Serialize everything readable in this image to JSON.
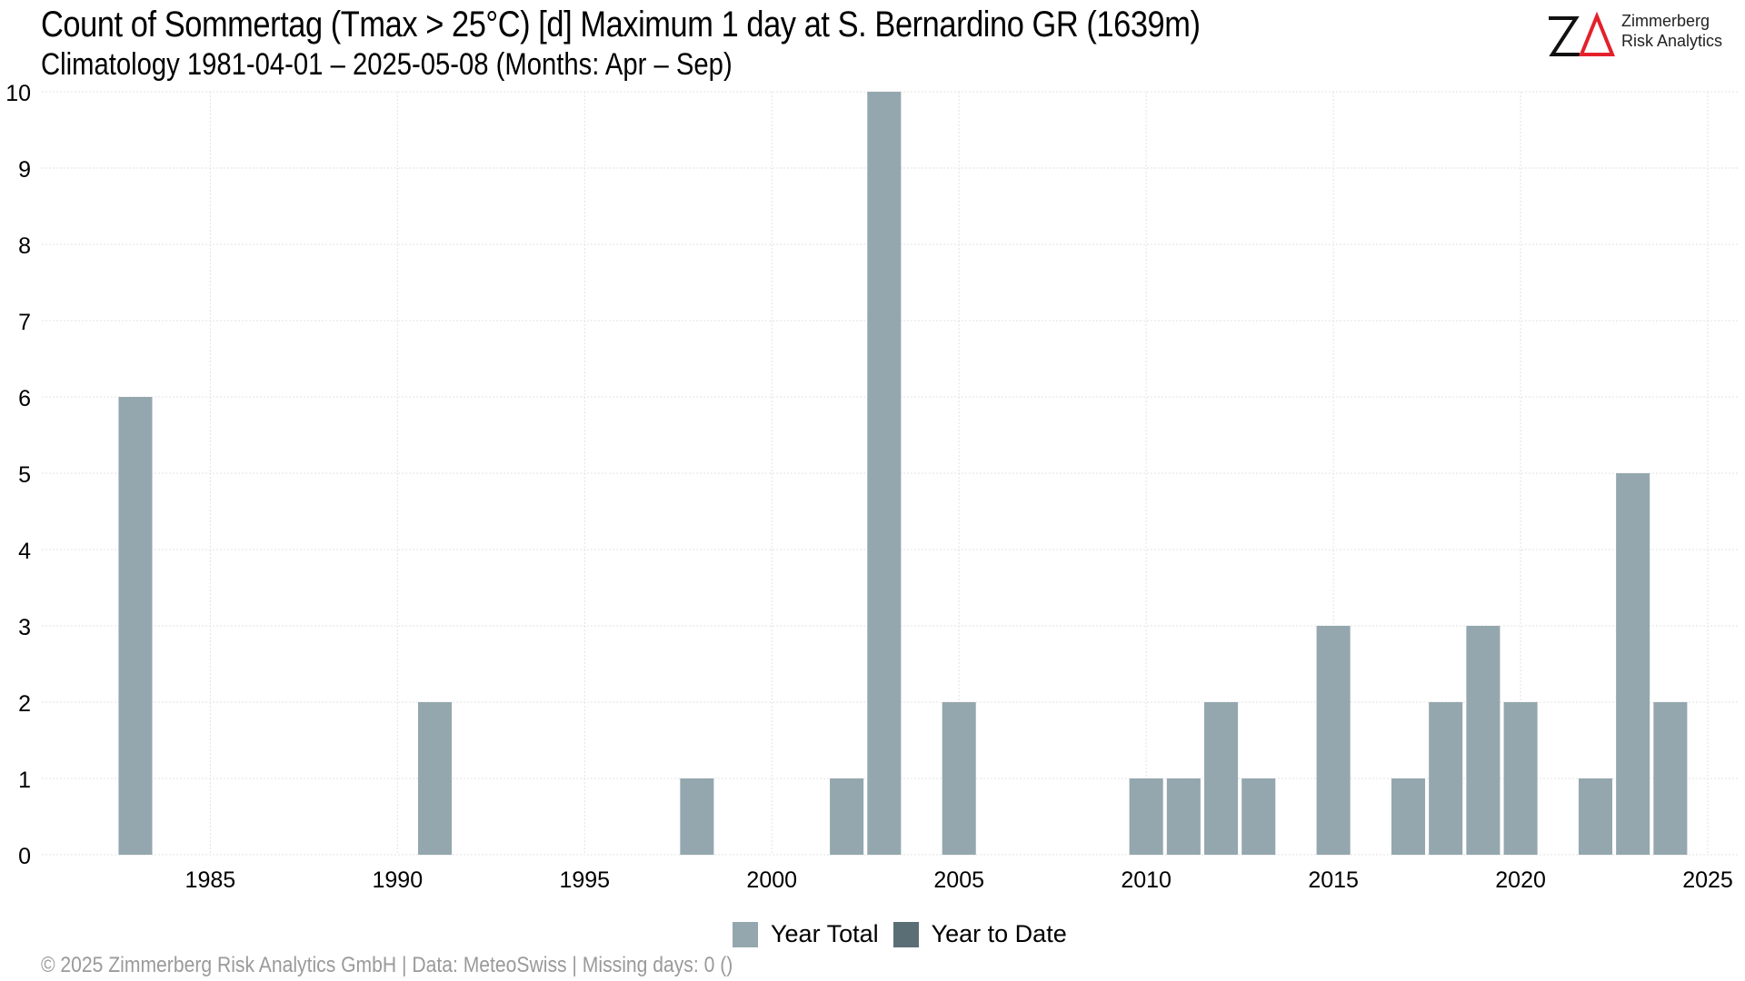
{
  "header": {
    "title": "Count of Sommertag (Tmax > 25°C) [d] Maximum 1 day at S. Bernardino  GR (1639m)",
    "subtitle": "Climatology 1981-04-01 – 2025-05-08 (Months: Apr – Sep)"
  },
  "logo": {
    "line1": "Zimmerberg",
    "line2": "Risk Analytics",
    "colors": {
      "z": "#111111",
      "delta": "#e3212b"
    }
  },
  "footer": {
    "text": "©  2025 Zimmerberg Risk Analytics GmbH | Data: MeteoSwiss | Missing days: 0 ()"
  },
  "legend": [
    {
      "label": "Year Total",
      "color": "#94a7ae"
    },
    {
      "label": "Year to Date",
      "color": "#5a6e75"
    }
  ],
  "chart_data": {
    "type": "bar",
    "x": [
      1983,
      1991,
      1998,
      2002,
      2003,
      2005,
      2010,
      2011,
      2012,
      2013,
      2015,
      2017,
      2018,
      2019,
      2020,
      2022,
      2023,
      2024
    ],
    "series": [
      {
        "name": "Year Total",
        "color": "#94a7ae",
        "values": [
          6,
          2,
          1,
          1,
          10,
          2,
          1,
          1,
          2,
          1,
          3,
          1,
          2,
          3,
          2,
          1,
          5,
          2
        ]
      },
      {
        "name": "Year to Date",
        "color": "#5a6e75",
        "values": [
          0,
          0,
          0,
          0,
          0,
          0,
          0,
          0,
          0,
          0,
          0,
          0,
          0,
          0,
          0,
          0,
          0,
          0
        ]
      }
    ],
    "xlim": [
      1980.5,
      2025.8
    ],
    "ylim": [
      0,
      10
    ],
    "xticks": [
      1985,
      1990,
      1995,
      2000,
      2005,
      2010,
      2015,
      2020,
      2025
    ],
    "yticks": [
      0,
      1,
      2,
      3,
      4,
      5,
      6,
      7,
      8,
      9,
      10
    ],
    "grid": true,
    "legend_position": "bottom"
  }
}
